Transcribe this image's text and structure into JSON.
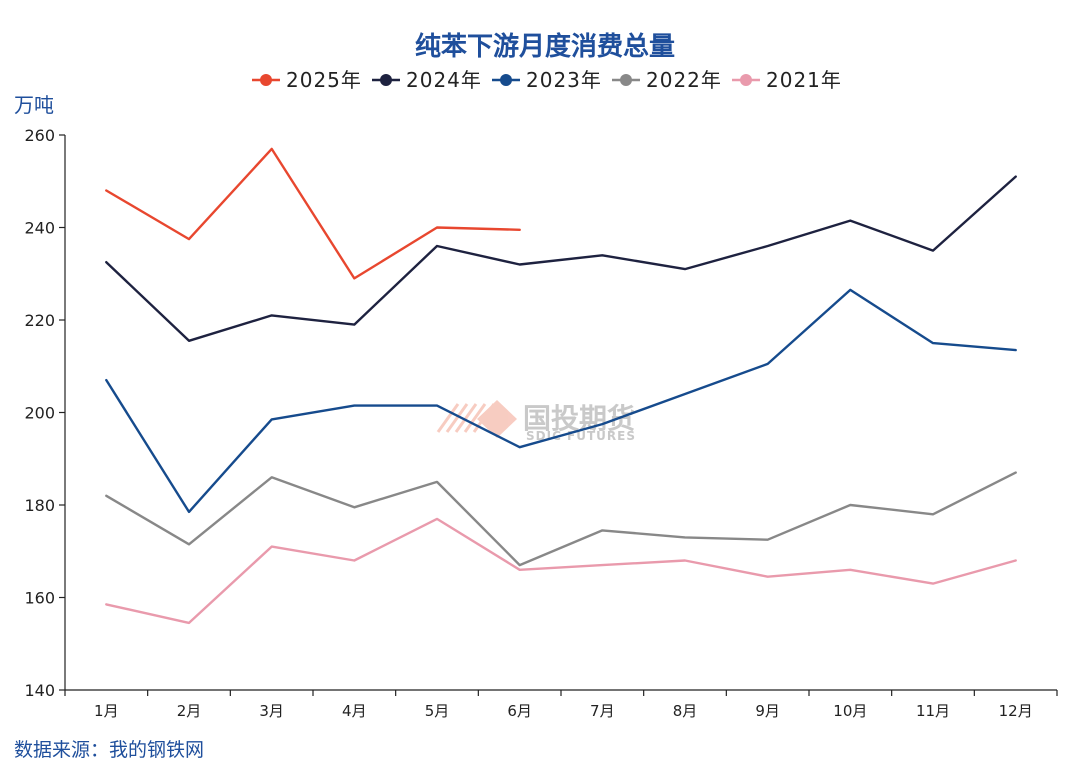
{
  "chart_data": {
    "type": "line",
    "title": "纯苯下游月度消费总量",
    "ylabel": "万吨",
    "source": "数据来源：我的钢铁网",
    "ylim": [
      140,
      260
    ],
    "yticks": [
      140,
      160,
      180,
      200,
      220,
      240,
      260
    ],
    "categories": [
      "1月",
      "2月",
      "3月",
      "4月",
      "5月",
      "6月",
      "7月",
      "8月",
      "9月",
      "10月",
      "11月",
      "12月"
    ],
    "legend_position": "top",
    "grid": false,
    "series": [
      {
        "name": "2025年",
        "color": "#e8472f",
        "values": [
          248,
          237.5,
          257,
          229,
          240,
          239.5,
          null,
          null,
          null,
          null,
          null,
          null
        ]
      },
      {
        "name": "2024年",
        "color": "#1e2240",
        "values": [
          232.5,
          215.5,
          221,
          219,
          236,
          232,
          234,
          231,
          236,
          241.5,
          235,
          251
        ]
      },
      {
        "name": "2023年",
        "color": "#164b8d",
        "values": [
          207,
          178.5,
          198.5,
          201.5,
          201.5,
          192.5,
          197.5,
          204,
          210.5,
          226.5,
          215,
          213.5
        ]
      },
      {
        "name": "2022年",
        "color": "#888888",
        "values": [
          182,
          171.5,
          186,
          179.5,
          185,
          167,
          174.5,
          173,
          172.5,
          180,
          178,
          187
        ]
      },
      {
        "name": "2021年",
        "color": "#e99aac",
        "values": [
          158.5,
          154.5,
          171,
          168,
          177,
          166,
          167,
          168,
          164.5,
          166,
          163,
          168
        ]
      }
    ]
  },
  "watermark": {
    "cn": "国投期货",
    "en": "SDIC FUTURES"
  }
}
